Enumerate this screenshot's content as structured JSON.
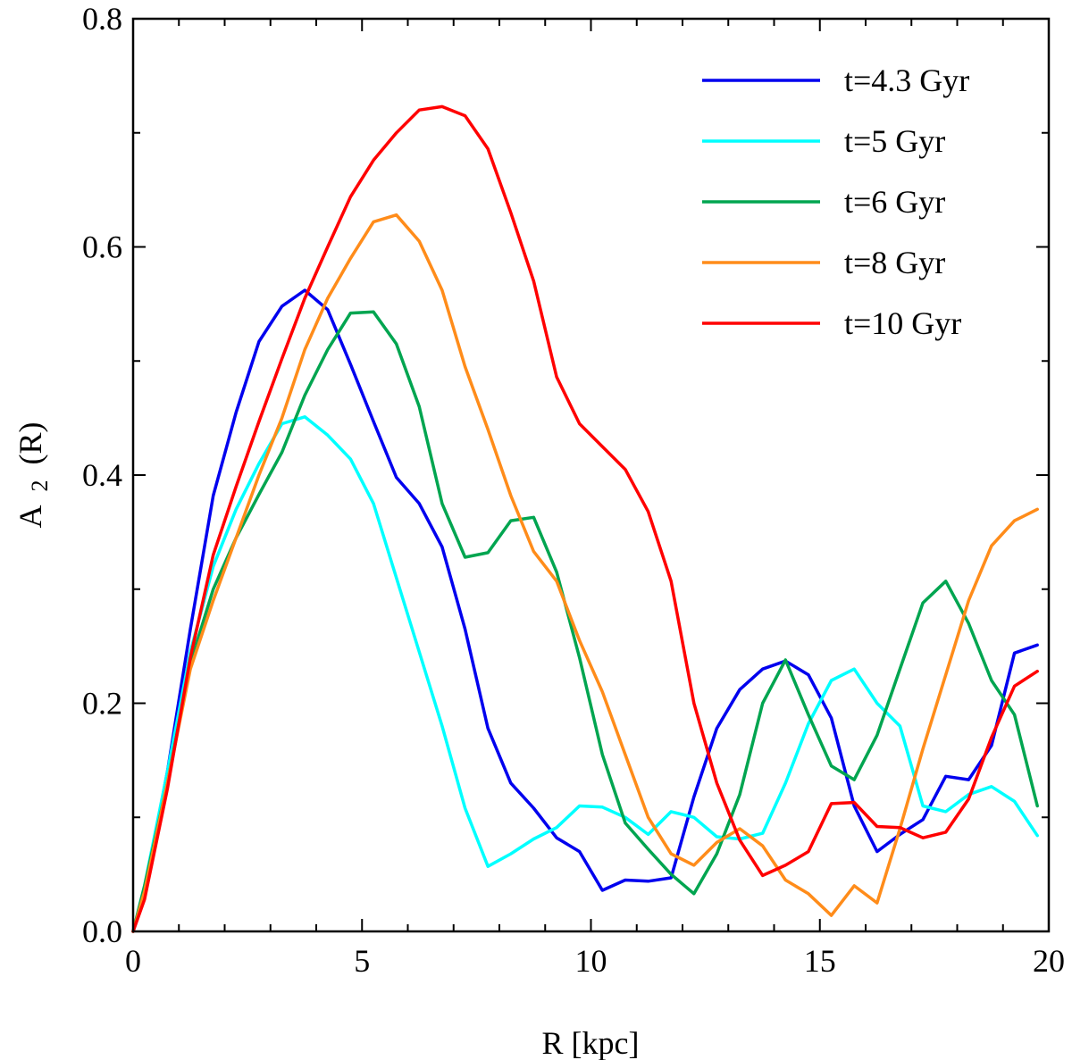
{
  "chart_data": {
    "type": "line",
    "title": "",
    "xlabel": "R [kpc]",
    "ylabel_main": "A",
    "ylabel_sub": "2",
    "ylabel_rest": "(R)",
    "xlim": [
      0,
      20
    ],
    "ylim": [
      0,
      0.8
    ],
    "x_ticks": [
      0,
      5,
      10,
      15,
      20
    ],
    "x_tick_labels": [
      "0",
      "5",
      "10",
      "15",
      "20"
    ],
    "y_ticks": [
      0,
      0.2,
      0.4,
      0.6,
      0.8
    ],
    "y_tick_labels": [
      "0.0",
      "0.2",
      "0.4",
      "0.6",
      "0.8"
    ],
    "grid": false,
    "legend_position": "top-right",
    "series": [
      {
        "name": "t=4.3 Gyr",
        "color": "#0000ee",
        "x": [
          0,
          0.25,
          0.75,
          1.25,
          1.75,
          2.25,
          2.75,
          3.25,
          3.75,
          4.25,
          4.75,
          5.25,
          5.75,
          6.25,
          6.75,
          7.25,
          7.75,
          8.25,
          8.75,
          9.25,
          9.75,
          10.25,
          10.75,
          11.25,
          11.75,
          12.25,
          12.75,
          13.25,
          13.75,
          14.25,
          14.75,
          15.25,
          15.75,
          16.25,
          16.75,
          17.25,
          17.75,
          18.25,
          18.75,
          19.25,
          19.75
        ],
        "values": [
          0,
          0.035,
          0.14,
          0.265,
          0.382,
          0.455,
          0.517,
          0.548,
          0.562,
          0.545,
          0.497,
          0.447,
          0.398,
          0.375,
          0.337,
          0.265,
          0.178,
          0.13,
          0.108,
          0.082,
          0.07,
          0.036,
          0.045,
          0.044,
          0.047,
          0.118,
          0.178,
          0.212,
          0.23,
          0.237,
          0.225,
          0.187,
          0.11,
          0.07,
          0.085,
          0.098,
          0.136,
          0.133,
          0.163,
          0.244,
          0.251
        ]
      },
      {
        "name": "t=5 Gyr",
        "color": "#00ffff",
        "x": [
          0,
          0.25,
          0.75,
          1.25,
          1.75,
          2.25,
          2.75,
          3.25,
          3.75,
          4.25,
          4.75,
          5.25,
          5.75,
          6.25,
          6.75,
          7.25,
          7.75,
          8.25,
          8.75,
          9.25,
          9.75,
          10.25,
          10.75,
          11.25,
          11.75,
          12.25,
          12.75,
          13.25,
          13.75,
          14.25,
          14.75,
          15.25,
          15.75,
          16.25,
          16.75,
          17.25,
          17.75,
          18.25,
          18.75,
          19.25,
          19.75
        ],
        "values": [
          0,
          0.04,
          0.14,
          0.245,
          0.32,
          0.37,
          0.41,
          0.445,
          0.451,
          0.435,
          0.414,
          0.375,
          0.31,
          0.245,
          0.18,
          0.108,
          0.057,
          0.068,
          0.081,
          0.091,
          0.11,
          0.109,
          0.1,
          0.085,
          0.105,
          0.1,
          0.083,
          0.081,
          0.086,
          0.13,
          0.182,
          0.22,
          0.23,
          0.2,
          0.18,
          0.11,
          0.105,
          0.12,
          0.127,
          0.114,
          0.084
        ]
      },
      {
        "name": "t=6 Gyr",
        "color": "#00a550",
        "x": [
          0,
          0.25,
          0.75,
          1.25,
          1.75,
          2.25,
          2.75,
          3.25,
          3.75,
          4.25,
          4.75,
          5.25,
          5.75,
          6.25,
          6.75,
          7.25,
          7.75,
          8.25,
          8.75,
          9.25,
          9.75,
          10.25,
          10.75,
          11.25,
          11.75,
          12.25,
          12.75,
          13.25,
          13.75,
          14.25,
          14.75,
          15.25,
          15.75,
          16.25,
          16.75,
          17.25,
          17.75,
          18.25,
          18.75,
          19.25,
          19.75
        ],
        "values": [
          0,
          0.04,
          0.13,
          0.235,
          0.3,
          0.345,
          0.383,
          0.42,
          0.47,
          0.51,
          0.542,
          0.543,
          0.515,
          0.46,
          0.375,
          0.328,
          0.332,
          0.36,
          0.363,
          0.315,
          0.24,
          0.155,
          0.095,
          0.072,
          0.05,
          0.033,
          0.068,
          0.12,
          0.2,
          0.238,
          0.19,
          0.145,
          0.133,
          0.172,
          0.23,
          0.288,
          0.307,
          0.27,
          0.22,
          0.19,
          0.11
        ]
      },
      {
        "name": "t=8 Gyr",
        "color": "#ff8c1a",
        "x": [
          0,
          0.25,
          0.75,
          1.25,
          1.75,
          2.25,
          2.75,
          3.25,
          3.75,
          4.25,
          4.75,
          5.25,
          5.75,
          6.25,
          6.75,
          7.25,
          7.75,
          8.25,
          8.75,
          9.25,
          9.75,
          10.25,
          10.75,
          11.25,
          11.75,
          12.25,
          12.75,
          13.25,
          13.75,
          14.25,
          14.75,
          15.25,
          15.75,
          16.25,
          16.75,
          17.25,
          17.75,
          18.25,
          18.75,
          19.25,
          19.75
        ],
        "values": [
          0,
          0.035,
          0.13,
          0.23,
          0.29,
          0.345,
          0.4,
          0.45,
          0.51,
          0.555,
          0.59,
          0.622,
          0.628,
          0.605,
          0.562,
          0.495,
          0.44,
          0.382,
          0.333,
          0.307,
          0.255,
          0.21,
          0.155,
          0.1,
          0.068,
          0.058,
          0.078,
          0.09,
          0.075,
          0.045,
          0.033,
          0.014,
          0.04,
          0.025,
          0.09,
          0.16,
          0.225,
          0.29,
          0.338,
          0.36,
          0.37
        ]
      },
      {
        "name": "t=10 Gyr",
        "color": "#ff0000",
        "x": [
          0,
          0.25,
          0.75,
          1.25,
          1.75,
          2.25,
          2.75,
          3.25,
          3.75,
          4.25,
          4.75,
          5.25,
          5.75,
          6.25,
          6.75,
          7.25,
          7.75,
          8.25,
          8.75,
          9.25,
          9.75,
          10.25,
          10.75,
          11.25,
          11.75,
          12.25,
          12.75,
          13.25,
          13.75,
          14.25,
          14.75,
          15.25,
          15.75,
          16.25,
          16.75,
          17.25,
          17.75,
          18.25,
          18.75,
          19.25,
          19.75
        ],
        "values": [
          0,
          0.028,
          0.125,
          0.24,
          0.33,
          0.39,
          0.447,
          0.502,
          0.555,
          0.6,
          0.644,
          0.676,
          0.7,
          0.72,
          0.723,
          0.715,
          0.686,
          0.63,
          0.57,
          0.486,
          0.445,
          0.425,
          0.405,
          0.368,
          0.307,
          0.2,
          0.13,
          0.08,
          0.049,
          0.058,
          0.07,
          0.112,
          0.113,
          0.092,
          0.091,
          0.082,
          0.087,
          0.116,
          0.17,
          0.215,
          0.228
        ]
      }
    ]
  }
}
